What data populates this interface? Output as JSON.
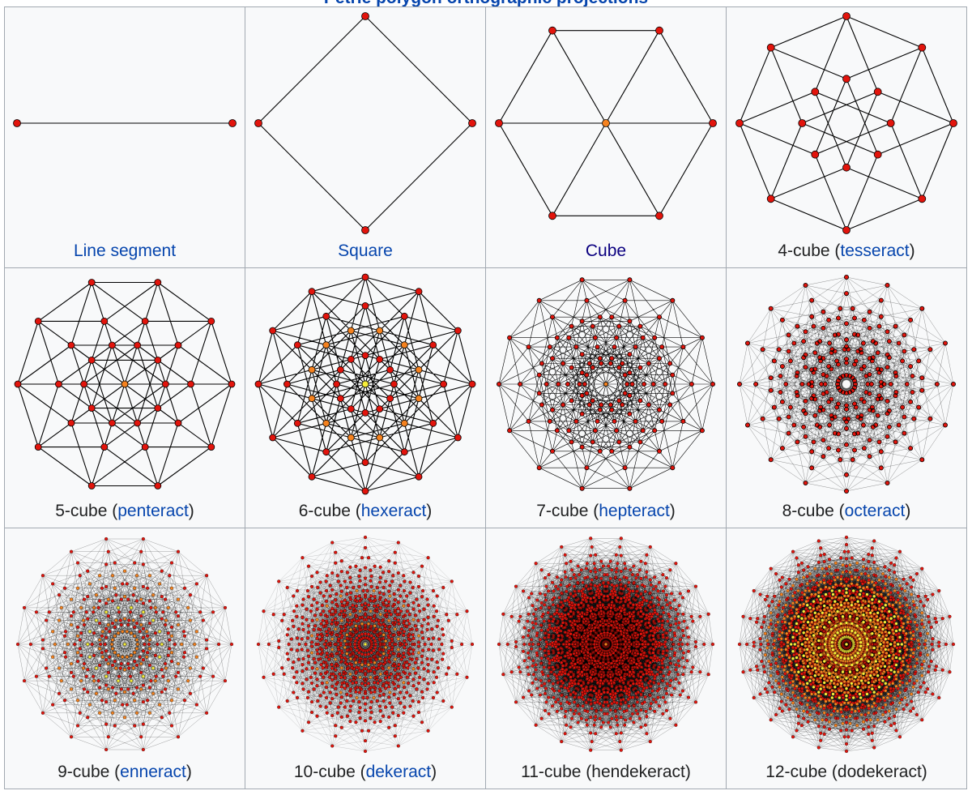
{
  "title": "Petrie polygon orthographic projections",
  "cells": [
    {
      "parts": [
        {
          "text": "Line segment",
          "link": "link"
        }
      ]
    },
    {
      "parts": [
        {
          "text": "Square",
          "link": "link"
        }
      ]
    },
    {
      "parts": [
        {
          "text": "Cube",
          "link": "visited"
        }
      ]
    },
    {
      "parts": [
        {
          "text": "4-cube (",
          "link": "none"
        },
        {
          "text": "tesseract",
          "link": "link"
        },
        {
          "text": ")",
          "link": "none"
        }
      ]
    },
    {
      "parts": [
        {
          "text": "5-cube (",
          "link": "none"
        },
        {
          "text": "penteract",
          "link": "link"
        },
        {
          "text": ")",
          "link": "none"
        }
      ]
    },
    {
      "parts": [
        {
          "text": "6-cube (",
          "link": "none"
        },
        {
          "text": "hexeract",
          "link": "link"
        },
        {
          "text": ")",
          "link": "none"
        }
      ]
    },
    {
      "parts": [
        {
          "text": "7-cube (",
          "link": "none"
        },
        {
          "text": "hepteract",
          "link": "link"
        },
        {
          "text": ")",
          "link": "none"
        }
      ]
    },
    {
      "parts": [
        {
          "text": "8-cube (",
          "link": "none"
        },
        {
          "text": "octeract",
          "link": "link"
        },
        {
          "text": ")",
          "link": "none"
        }
      ]
    },
    {
      "parts": [
        {
          "text": "9-cube (",
          "link": "none"
        },
        {
          "text": "enneract",
          "link": "link"
        },
        {
          "text": ")",
          "link": "none"
        }
      ]
    },
    {
      "parts": [
        {
          "text": "10-cube (",
          "link": "none"
        },
        {
          "text": "dekeract",
          "link": "link"
        },
        {
          "text": ")",
          "link": "none"
        }
      ]
    },
    {
      "parts": [
        {
          "text": "11-cube (hendekeract)",
          "link": "none"
        }
      ]
    },
    {
      "parts": [
        {
          "text": "12-cube (dodekeract)",
          "link": "none"
        }
      ]
    }
  ]
}
